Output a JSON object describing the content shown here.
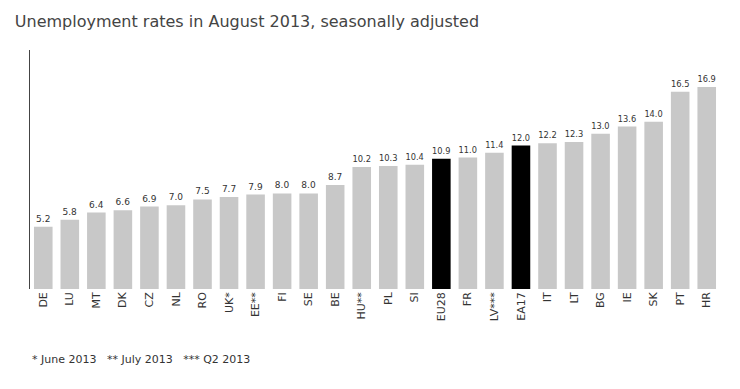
{
  "chart_data": {
    "type": "bar",
    "title": "Unemployment rates in August 2013, seasonally adjusted",
    "annotations": [
      "* June 2013   ** July 2013   *** Q2 2013"
    ],
    "categories": [
      "DE",
      "LU",
      "MT",
      "DK",
      "CZ",
      "NL",
      "RO",
      "UK*",
      "EE**",
      "FI",
      "SE",
      "BE",
      "HU**",
      "PL",
      "SI",
      "EU28",
      "FR",
      "LV***",
      "EA17",
      "IT",
      "LT",
      "BG",
      "IE",
      "SK",
      "PT",
      "HR"
    ],
    "values": [
      5.2,
      5.8,
      6.4,
      6.6,
      6.9,
      7.0,
      7.5,
      7.7,
      7.9,
      8.0,
      8.0,
      8.7,
      10.2,
      10.3,
      10.4,
      10.9,
      11.0,
      11.4,
      12.0,
      12.2,
      12.3,
      13.0,
      13.6,
      14.0,
      16.5,
      16.9
    ],
    "value_labels": [
      "5.2",
      "5.8",
      "6.4",
      "6.6",
      "6.9",
      "7.0",
      "7.5",
      "7.7",
      "7.9",
      "8.0",
      "8.0",
      "8.7",
      "10.2",
      "10.3",
      "10.4",
      "10.9",
      "11.0",
      "11.4",
      "12.0",
      "12.2",
      "12.3",
      "13.0",
      "13.6",
      "14.0",
      "16.5",
      "16.9"
    ],
    "colors": [
      "#c8c8c8",
      "#c8c8c8",
      "#c8c8c8",
      "#c8c8c8",
      "#c8c8c8",
      "#c8c8c8",
      "#c8c8c8",
      "#c8c8c8",
      "#c8c8c8",
      "#c8c8c8",
      "#c8c8c8",
      "#c8c8c8",
      "#c8c8c8",
      "#c8c8c8",
      "#c8c8c8",
      "#000000",
      "#c8c8c8",
      "#c8c8c8",
      "#000000",
      "#c8c8c8",
      "#c8c8c8",
      "#c8c8c8",
      "#c8c8c8",
      "#c8c8c8",
      "#c8c8c8",
      "#c8c8c8"
    ],
    "ylim": [
      0,
      20
    ],
    "data_labels": true,
    "tick_labels": "x",
    "grid": false
  }
}
